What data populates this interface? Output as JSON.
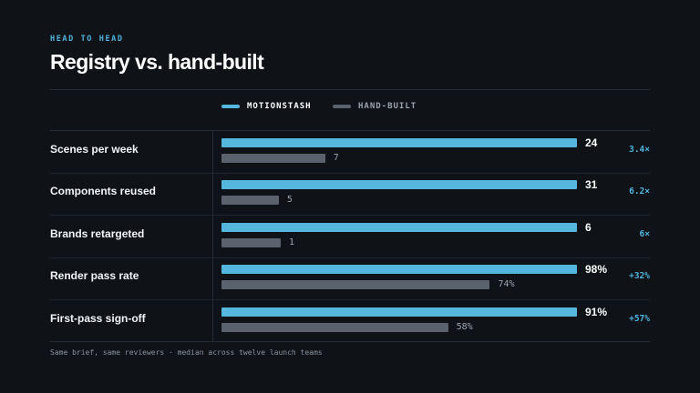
{
  "header": {
    "eyebrow": "HEAD TO HEAD",
    "title": "Registry vs. hand-built"
  },
  "colors": {
    "background": "#0f1318",
    "primary": "#56b7de",
    "secondary": "#5a636d",
    "accent_text": "#4fb3dd"
  },
  "chart_data": {
    "type": "bar",
    "orientation": "horizontal",
    "legend": {
      "placement": "top-center",
      "entries": [
        "MOTIONSTASH",
        "HAND-BUILT"
      ]
    },
    "series": [
      {
        "name": "MOTIONSTASH",
        "color": "#56b7de"
      },
      {
        "name": "HAND-BUILT",
        "color": "#5a636d"
      }
    ],
    "rows": [
      {
        "label": "Scenes per week",
        "primary": 24,
        "secondary": 7,
        "max": 24,
        "primary_label": "24",
        "secondary_label": "7",
        "delta": "3.4×"
      },
      {
        "label": "Components reused",
        "primary": 31,
        "secondary": 5,
        "max": 31,
        "primary_label": "31",
        "secondary_label": "5",
        "delta": "6.2×"
      },
      {
        "label": "Brands retargeted",
        "primary": 6,
        "secondary": 1,
        "max": 6,
        "primary_label": "6",
        "secondary_label": "1",
        "delta": "6×"
      },
      {
        "label": "Render pass rate",
        "primary": 98,
        "secondary": 74,
        "max": 98,
        "primary_label": "98%",
        "secondary_label": "74%",
        "delta": "+32%"
      },
      {
        "label": "First-pass sign-off",
        "primary": 91,
        "secondary": 58,
        "max": 91,
        "primary_label": "91%",
        "secondary_label": "58%",
        "delta": "+57%"
      }
    ],
    "grid": false
  },
  "footnote": "Same brief, same reviewers · median across twelve launch teams"
}
